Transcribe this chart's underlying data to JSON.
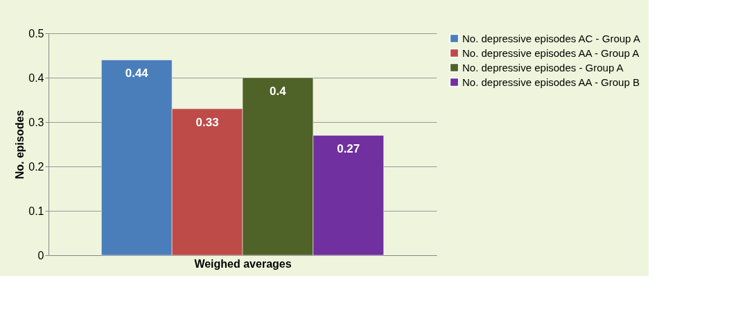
{
  "chart_data": {
    "type": "bar",
    "xlabel": "Weighed averages",
    "ylabel": "No. episodes",
    "categories": [
      null
    ],
    "series": [
      {
        "name": "No. depressive episodes AC - Group A",
        "color": "#4a7ebb",
        "values": [
          0.44
        ]
      },
      {
        "name": "No. depressive episodes AA - Group A",
        "color": "#be4b48",
        "values": [
          0.33
        ]
      },
      {
        "name": "No. depressive episodes - Group A",
        "color": "#4f6228",
        "values": [
          0.4
        ]
      },
      {
        "name": "No. depressive episodes AA - Group B",
        "color": "#7030a0",
        "values": [
          0.27
        ]
      }
    ],
    "ylim": [
      0,
      0.5
    ],
    "yticks": [
      0,
      0.1,
      0.2,
      0.3,
      0.4,
      0.5
    ],
    "grid": "y",
    "legend": "right",
    "data_labels": true,
    "tick_labels": "y"
  }
}
